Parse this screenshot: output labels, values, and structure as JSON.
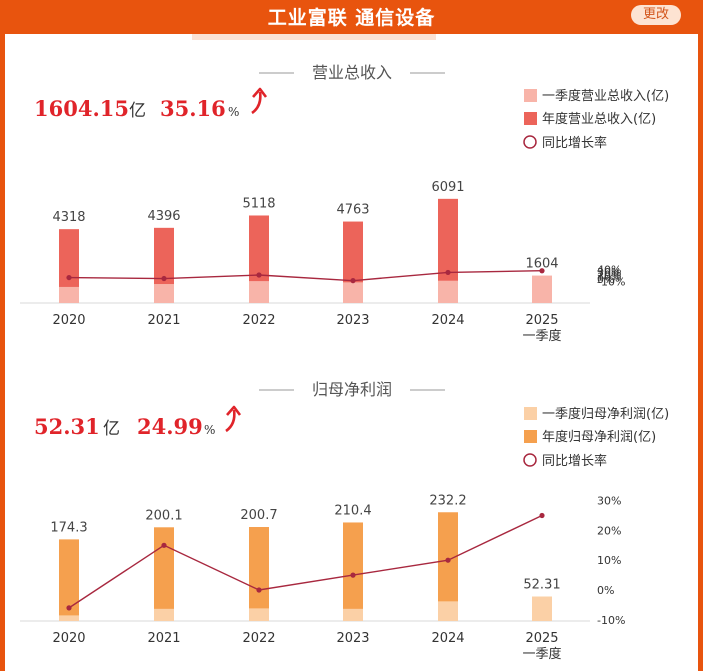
{
  "header": {
    "title": "工业富联 通信设备",
    "change_button": "更改"
  },
  "colors": {
    "header_bg": "#e8540e",
    "revenue_q1": "#f8b4a9",
    "revenue_year": "#ec645a",
    "profit_q1": "#fbd0a6",
    "profit_year": "#f5a04e",
    "yoy_line": "#a8283f",
    "highlight_red": "#e0242a"
  },
  "revenue": {
    "section_title": "营业总收入",
    "value": "1604.15",
    "value_unit": "亿",
    "yoy": "35.16",
    "yoy_unit": "%",
    "arrow_icon": "up-arrow-icon",
    "legend": [
      "一季度营业总收入(亿)",
      "年度营业总收入(亿)",
      "同比增长率"
    ]
  },
  "profit": {
    "section_title": "归母净利润",
    "value": "52.31",
    "value_unit": "亿",
    "yoy": "24.99",
    "yoy_unit": "%",
    "arrow_icon": "up-arrow-icon",
    "legend": [
      "一季度归母净利润(亿)",
      "年度归母净利润(亿)",
      "同比增长率"
    ]
  },
  "chart_data": [
    {
      "type": "bar",
      "title": "营业总收入",
      "categories": [
        "2020",
        "2021",
        "2022",
        "2023",
        "2024",
        "2025\n一季度"
      ],
      "series": [
        {
          "name": "一季度营业总收入(亿)",
          "values": [
            940,
            1109,
            1281,
            1209,
            1304,
            1604
          ]
        },
        {
          "name": "年度营业总收入(亿)",
          "values": [
            4318,
            4396,
            5118,
            4763,
            6091,
            null
          ]
        },
        {
          "name": "同比增长率",
          "values": [
            6,
            2,
            17,
            -7,
            28,
            35.16
          ]
        }
      ],
      "bar_labels": [
        "4318",
        "4396",
        "5118",
        "4763",
        "6091",
        "1604"
      ],
      "y2_ticks": [
        "40%",
        "30%",
        "20%",
        "10%",
        "0%",
        "-10%"
      ],
      "y2lim": [
        -10,
        40
      ],
      "grid": false,
      "legend": "top-right"
    },
    {
      "type": "bar",
      "title": "归母净利润",
      "categories": [
        "2020",
        "2021",
        "2022",
        "2023",
        "2024",
        "2025\n一季度"
      ],
      "series": [
        {
          "name": "一季度归母净利润(亿)",
          "values": [
            12,
            26,
            27,
            26,
            42,
            52.31
          ]
        },
        {
          "name": "年度归母净利润(亿)",
          "values": [
            174.3,
            200.1,
            200.7,
            210.4,
            232.2,
            null
          ]
        },
        {
          "name": "同比增长率",
          "values": [
            -6,
            15,
            0,
            5,
            10,
            25
          ]
        }
      ],
      "bar_labels": [
        "174.3",
        "200.1",
        "200.7",
        "210.4",
        "232.2",
        "52.31"
      ],
      "y2_ticks": [
        "30%",
        "20%",
        "10%",
        "0%",
        "-10%"
      ],
      "y2lim": [
        -10,
        30
      ],
      "grid": false,
      "legend": "top-right"
    }
  ]
}
